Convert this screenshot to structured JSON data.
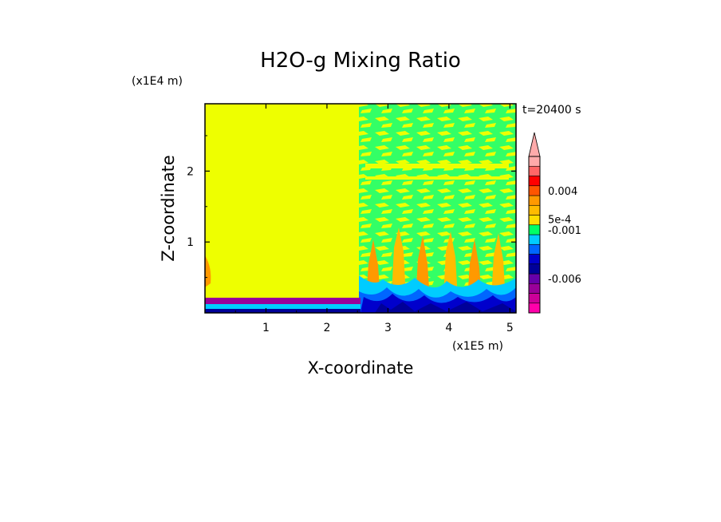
{
  "chart_data": {
    "type": "heatmap",
    "title": "H2O-g Mixing Ratio",
    "xlabel": "X-coordinate",
    "ylabel": "Z-coordinate",
    "x_unit": "(x1E5 m)",
    "y_unit": "(x1E4 m)",
    "time_label": "t=20400 s",
    "xlim": [
      0,
      5.1
    ],
    "ylim": [
      0,
      2.95
    ],
    "x_ticks": [
      {
        "value": 1,
        "label": "1"
      },
      {
        "value": 2,
        "label": "2"
      },
      {
        "value": 3,
        "label": "3"
      },
      {
        "value": 4,
        "label": "4"
      },
      {
        "value": 5,
        "label": "5"
      }
    ],
    "y_ticks": [
      {
        "value": 1,
        "label": "1"
      },
      {
        "value": 2,
        "label": "2"
      }
    ],
    "background_value_color": "#eeff00",
    "colorbar": {
      "colors": [
        "#ff00aa",
        "#cc0099",
        "#990099",
        "#6600aa",
        "#000099",
        "#0000cc",
        "#0066ff",
        "#00ccff",
        "#00ff66",
        "#ffdd00",
        "#ffbb00",
        "#ff9900",
        "#ff5500",
        "#ff0000",
        "#ff6666",
        "#ffaaaa"
      ],
      "labels": [
        {
          "text": "0.004",
          "level": 12.5
        },
        {
          "text": "5e-4",
          "level": 9.6
        },
        {
          "text": "-0.001",
          "level": 8.5
        },
        {
          "text": "-0.006",
          "level": 3.5
        }
      ],
      "extend": "max"
    }
  }
}
